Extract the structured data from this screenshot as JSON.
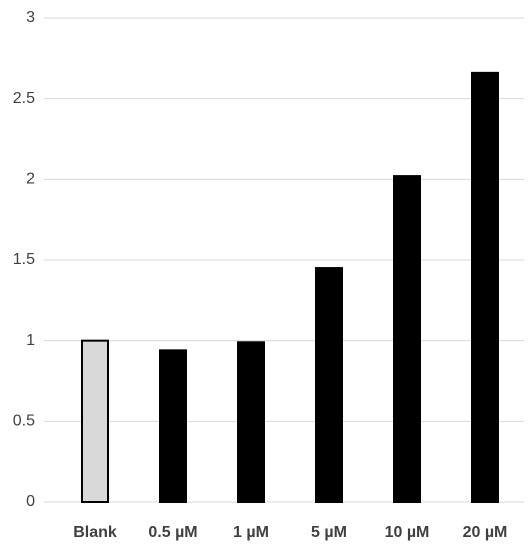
{
  "chart_data": {
    "type": "bar",
    "categories": [
      "Blank",
      "0.5 µM",
      "1 µM",
      "5 µM",
      "10 µM",
      "20 µM"
    ],
    "values": [
      1.0,
      0.94,
      0.99,
      1.45,
      2.02,
      2.66
    ],
    "colors": [
      "#d9d9d9",
      "#000000",
      "#000000",
      "#000000",
      "#000000",
      "#000000"
    ],
    "edgecolor": "#000000",
    "ylim": [
      0,
      3
    ],
    "yticks": [
      0,
      0.5,
      1,
      1.5,
      2,
      2.5,
      3
    ],
    "grid": true
  }
}
